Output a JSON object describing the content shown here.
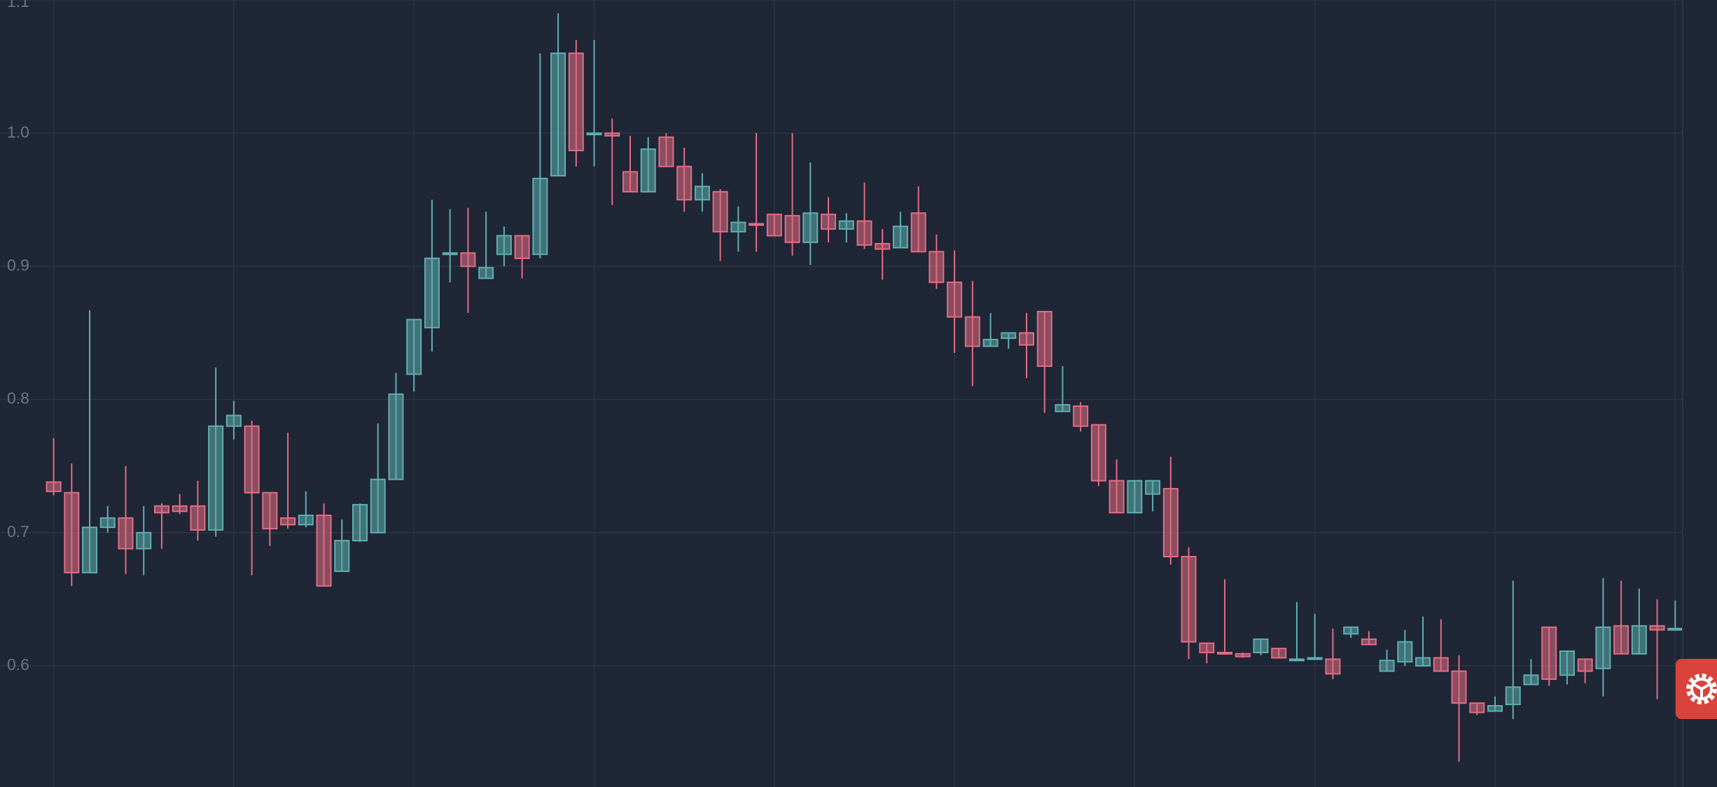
{
  "chart_data": {
    "type": "candlestick",
    "open": [
      0.738,
      0.73,
      0.67,
      0.704,
      0.711,
      0.688,
      0.72,
      0.72,
      0.72,
      0.702,
      0.78,
      0.78,
      0.73,
      0.711,
      0.706,
      0.713,
      0.671,
      0.694,
      0.7,
      0.74,
      0.819,
      0.854,
      0.909,
      0.91,
      0.891,
      0.909,
      0.923,
      0.909,
      0.968,
      1.06,
      1.0,
      1.0,
      0.971,
      0.956,
      0.997,
      0.975,
      0.95,
      0.956,
      0.926,
      0.932,
      0.939,
      0.938,
      0.918,
      0.939,
      0.928,
      0.934,
      0.917,
      0.914,
      0.94,
      0.911,
      0.888,
      0.862,
      0.84,
      0.846,
      0.85,
      0.866,
      0.791,
      0.795,
      0.781,
      0.739,
      0.715,
      0.729,
      0.733,
      0.682,
      0.617,
      0.61,
      0.609,
      0.61,
      0.613,
      0.605,
      0.605,
      0.605,
      0.624,
      0.62,
      0.596,
      0.603,
      0.6,
      0.606,
      0.596,
      0.572,
      0.566,
      0.571,
      0.586,
      0.629,
      0.593,
      0.605,
      0.598,
      0.63,
      0.609,
      0.63,
      0.627
    ],
    "high": [
      0.771,
      0.752,
      0.867,
      0.72,
      0.75,
      0.72,
      0.722,
      0.729,
      0.739,
      0.824,
      0.799,
      0.784,
      0.73,
      0.775,
      0.731,
      0.722,
      0.71,
      0.722,
      0.782,
      0.82,
      0.86,
      0.95,
      0.943,
      0.944,
      0.941,
      0.93,
      0.923,
      1.06,
      1.09,
      1.07,
      1.07,
      1.011,
      0.998,
      0.997,
      1.0,
      0.989,
      0.97,
      0.958,
      0.945,
      1.0,
      0.939,
      1.0,
      0.978,
      0.952,
      0.94,
      0.963,
      0.928,
      0.941,
      0.96,
      0.924,
      0.912,
      0.889,
      0.865,
      0.85,
      0.865,
      0.866,
      0.825,
      0.798,
      0.781,
      0.755,
      0.739,
      0.739,
      0.757,
      0.689,
      0.617,
      0.665,
      0.61,
      0.62,
      0.613,
      0.648,
      0.639,
      0.628,
      0.629,
      0.626,
      0.612,
      0.627,
      0.637,
      0.635,
      0.608,
      0.572,
      0.577,
      0.664,
      0.605,
      0.629,
      0.611,
      0.605,
      0.666,
      0.664,
      0.658,
      0.65,
      0.649
    ],
    "low": [
      0.728,
      0.66,
      0.67,
      0.7,
      0.669,
      0.668,
      0.688,
      0.714,
      0.694,
      0.697,
      0.77,
      0.668,
      0.69,
      0.703,
      0.704,
      0.66,
      0.671,
      0.693,
      0.7,
      0.74,
      0.806,
      0.836,
      0.888,
      0.865,
      0.891,
      0.9,
      0.891,
      0.906,
      0.968,
      0.975,
      0.975,
      0.946,
      0.956,
      0.956,
      0.975,
      0.941,
      0.941,
      0.904,
      0.911,
      0.911,
      0.923,
      0.908,
      0.901,
      0.918,
      0.918,
      0.913,
      0.89,
      0.914,
      0.911,
      0.883,
      0.835,
      0.81,
      0.84,
      0.838,
      0.816,
      0.79,
      0.791,
      0.776,
      0.735,
      0.715,
      0.715,
      0.716,
      0.676,
      0.605,
      0.602,
      0.609,
      0.606,
      0.608,
      0.606,
      0.605,
      0.605,
      0.59,
      0.621,
      0.616,
      0.596,
      0.6,
      0.6,
      0.596,
      0.528,
      0.563,
      0.566,
      0.56,
      0.586,
      0.585,
      0.586,
      0.587,
      0.577,
      0.609,
      0.609,
      0.575,
      0.627
    ],
    "close": [
      0.731,
      0.67,
      0.704,
      0.711,
      0.688,
      0.7,
      0.715,
      0.716,
      0.702,
      0.78,
      0.788,
      0.73,
      0.703,
      0.706,
      0.713,
      0.66,
      0.694,
      0.721,
      0.74,
      0.804,
      0.86,
      0.906,
      0.91,
      0.9,
      0.899,
      0.923,
      0.906,
      0.966,
      1.06,
      0.987,
      1.0,
      0.998,
      0.956,
      0.988,
      0.975,
      0.95,
      0.96,
      0.926,
      0.933,
      0.931,
      0.923,
      0.918,
      0.94,
      0.928,
      0.934,
      0.916,
      0.913,
      0.93,
      0.911,
      0.888,
      0.862,
      0.84,
      0.845,
      0.85,
      0.841,
      0.825,
      0.796,
      0.78,
      0.739,
      0.715,
      0.739,
      0.739,
      0.682,
      0.618,
      0.61,
      0.609,
      0.607,
      0.62,
      0.606,
      0.605,
      0.606,
      0.594,
      0.629,
      0.616,
      0.604,
      0.618,
      0.606,
      0.596,
      0.572,
      0.565,
      0.57,
      0.584,
      0.593,
      0.59,
      0.611,
      0.596,
      0.629,
      0.609,
      0.63,
      0.627,
      0.628
    ],
    "up_color": "#5fb0b0",
    "down_color": "#e36d84",
    "ylim": [
      0.509,
      1.1
    ],
    "yticks": [
      0.6,
      0.7,
      0.8,
      0.9,
      {
        "value": 1,
        "label": "1.0"
      },
      1.1
    ],
    "grid": true
  }
}
